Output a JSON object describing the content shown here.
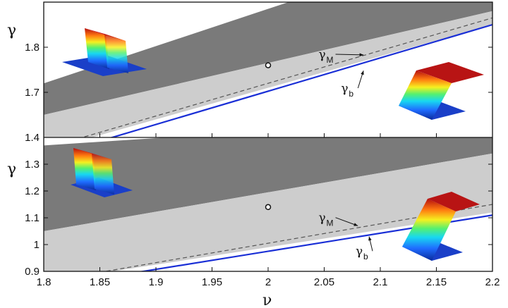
{
  "chart_data": {
    "type": "area",
    "x_ticks": [
      "1.8",
      "1.85",
      "1.9",
      "1.95",
      "2",
      "2.05",
      "2.1",
      "2.15",
      "2.2"
    ],
    "xlabel": "ν",
    "xlim": [
      1.8,
      2.2
    ],
    "colors": {
      "dark_region": "#7a7a7a",
      "light_region": "#cdcdcd",
      "blue_line": "#1a2fd6",
      "dash_line": "#555555"
    },
    "panels": [
      {
        "position": "top",
        "ylabel": "γ",
        "ylim": [
          1.6,
          1.9
        ],
        "y_ticks": [
          "1.4",
          "1.7",
          "1.8"
        ],
        "dark_region": {
          "x": [
            1.8,
            2.2
          ],
          "lower": [
            1.65,
            1.88
          ],
          "upper": [
            1.72,
            2.05
          ]
        },
        "light_region": {
          "x": [
            1.8,
            2.2
          ],
          "lower": [
            1.57,
            1.85
          ],
          "upper": [
            1.65,
            1.88
          ]
        },
        "gamma_M": {
          "x": [
            1.8,
            2.2
          ],
          "y": [
            1.575,
            1.865
          ]
        },
        "gamma_b": {
          "x": [
            1.8,
            2.2
          ],
          "y": [
            1.555,
            1.85
          ]
        },
        "point": {
          "x": 2.0,
          "y": 1.76
        },
        "labels": [
          {
            "text": "γ",
            "sub": "M",
            "x": 2.045,
            "y": 1.775,
            "arrow_to": [
              2.085,
              1.783
            ]
          },
          {
            "text": "γ",
            "sub": "b",
            "x": 2.065,
            "y": 1.7,
            "arrow_to": [
              2.085,
              1.748
            ]
          }
        ]
      },
      {
        "position": "bottom",
        "ylabel": "γ",
        "ylim": [
          0.9,
          1.4
        ],
        "y_ticks": [
          "0.9",
          "1",
          "1.1",
          "1.2",
          "1.3"
        ],
        "dark_region": {
          "x": [
            1.8,
            2.2
          ],
          "lower": [
            1.05,
            1.34
          ],
          "upper": [
            1.37,
            1.48
          ]
        },
        "light_region": {
          "x": [
            1.8,
            2.2
          ],
          "lower": [
            0.86,
            1.12
          ],
          "upper": [
            1.05,
            1.34
          ]
        },
        "gamma_M": {
          "x": [
            1.8,
            2.2
          ],
          "y": [
            0.86,
            1.15
          ]
        },
        "gamma_b": {
          "x": [
            1.8,
            2.2
          ],
          "y": [
            0.84,
            1.11
          ]
        },
        "point": {
          "x": 2.0,
          "y": 1.14
        },
        "labels": [
          {
            "text": "γ",
            "sub": "M",
            "x": 2.045,
            "y": 1.085,
            "arrow_to": [
              2.08,
              1.07
            ]
          },
          {
            "text": "γ",
            "sub": "b",
            "x": 2.078,
            "y": 0.96,
            "arrow_to": [
              2.09,
              1.03
            ]
          }
        ]
      }
    ],
    "insets": [
      {
        "panel": "top",
        "kind": "narrow-peak",
        "anchor": "top-left"
      },
      {
        "panel": "top",
        "kind": "step-front",
        "anchor": "right"
      },
      {
        "panel": "bottom",
        "kind": "narrow-peak",
        "anchor": "top-left"
      },
      {
        "panel": "bottom",
        "kind": "step-front",
        "anchor": "right"
      }
    ]
  }
}
